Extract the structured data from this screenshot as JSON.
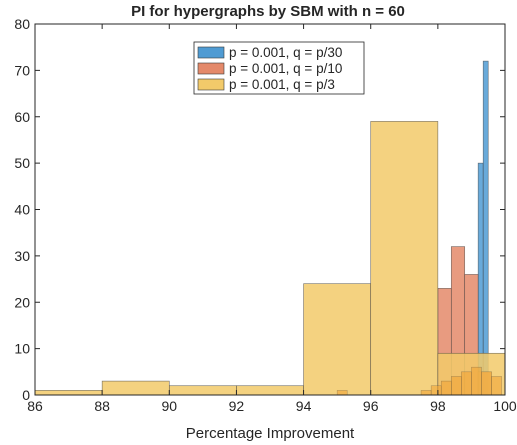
{
  "chart_data": {
    "type": "bar",
    "histogram": true,
    "title": "PI for hypergraphs by SBM with n = 60",
    "xlabel": "Percentage Improvement",
    "ylabel": "",
    "xlim": [
      86,
      100
    ],
    "ylim": [
      0,
      80
    ],
    "xticks": [
      "86",
      "88",
      "90",
      "92",
      "94",
      "96",
      "98",
      "100"
    ],
    "yticks": [
      "0",
      "10",
      "20",
      "30",
      "40",
      "50",
      "60",
      "70",
      "80"
    ],
    "grid": false,
    "legend_position": "top-center",
    "series": [
      {
        "name": "p = 0.001, q = p/30",
        "color": "#4f9bd3",
        "bins": [
          {
            "start": 99.2,
            "end": 99.35,
            "count": 50
          },
          {
            "start": 99.35,
            "end": 99.5,
            "count": 72
          }
        ]
      },
      {
        "name": "p = 0.001, q = p/10",
        "color": "#e4896a",
        "bins": [
          {
            "start": 98.0,
            "end": 98.4,
            "count": 23
          },
          {
            "start": 98.4,
            "end": 98.8,
            "count": 32
          },
          {
            "start": 98.8,
            "end": 99.2,
            "count": 26
          },
          {
            "start": 99.2,
            "end": 99.6,
            "count": 5
          }
        ]
      },
      {
        "name": "p = 0.001, q = p/3",
        "color": "#f2ca6a",
        "bins": [
          {
            "start": 86,
            "end": 88,
            "count": 1
          },
          {
            "start": 88,
            "end": 90,
            "count": 3
          },
          {
            "start": 90,
            "end": 92,
            "count": 2
          },
          {
            "start": 92,
            "end": 94,
            "count": 2
          },
          {
            "start": 94,
            "end": 96,
            "count": 24
          },
          {
            "start": 96,
            "end": 98,
            "count": 59
          },
          {
            "start": 98,
            "end": 100,
            "count": 9
          }
        ]
      }
    ],
    "overlay_bins": [
      {
        "start": 95.0,
        "end": 95.3,
        "count": 1
      },
      {
        "start": 97.5,
        "end": 97.8,
        "count": 1
      },
      {
        "start": 97.8,
        "end": 98.1,
        "count": 2
      },
      {
        "start": 98.1,
        "end": 98.4,
        "count": 3
      },
      {
        "start": 98.4,
        "end": 98.7,
        "count": 4
      },
      {
        "start": 98.7,
        "end": 99.0,
        "count": 5
      },
      {
        "start": 99.0,
        "end": 99.3,
        "count": 6
      },
      {
        "start": 99.3,
        "end": 99.6,
        "count": 5
      },
      {
        "start": 99.6,
        "end": 99.9,
        "count": 4
      }
    ],
    "overlay_color": "#f0a030"
  }
}
